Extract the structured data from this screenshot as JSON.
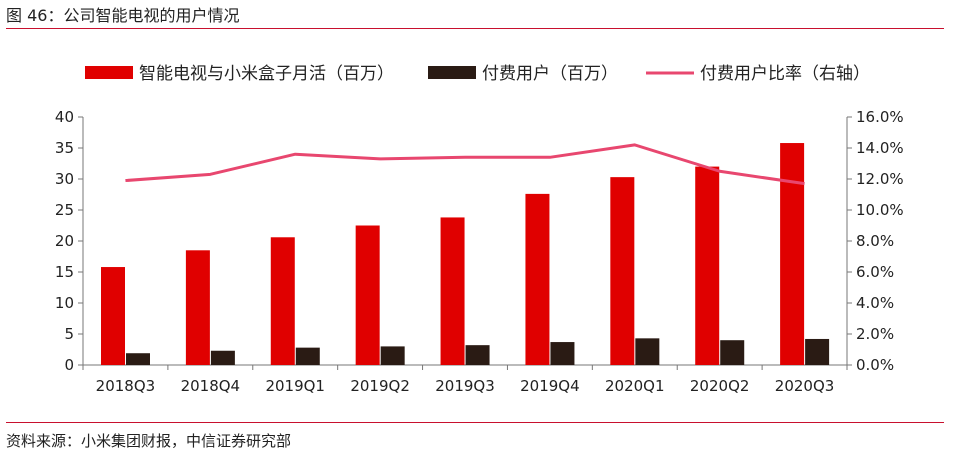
{
  "header": {
    "title": "图 46：公司智能电视的用户情况"
  },
  "footer": {
    "source": "资料来源：小米集团财报，中信证券研究部"
  },
  "colors": {
    "bar_mau": "#e00000",
    "bar_paid": "#2a1b14",
    "line_ratio": "#e8476f",
    "rule": "#c8102e"
  },
  "chart_data": {
    "type": "bar",
    "categories": [
      "2018Q3",
      "2018Q4",
      "2019Q1",
      "2019Q2",
      "2019Q3",
      "2019Q4",
      "2020Q1",
      "2020Q2",
      "2020Q3"
    ],
    "series": [
      {
        "name": "智能电视与小米盒子月活（百万）",
        "type": "bar",
        "axis": "left",
        "values": [
          15.8,
          18.5,
          20.6,
          22.5,
          23.8,
          27.6,
          30.3,
          32.0,
          35.8
        ]
      },
      {
        "name": "付费用户（百万）",
        "type": "bar",
        "axis": "left",
        "values": [
          1.9,
          2.3,
          2.8,
          3.0,
          3.2,
          3.7,
          4.3,
          4.0,
          4.2
        ]
      },
      {
        "name": "付费用户比率（右轴）",
        "type": "line",
        "axis": "right",
        "values": [
          11.9,
          12.3,
          13.6,
          13.3,
          13.4,
          13.4,
          14.2,
          12.5,
          11.7
        ]
      }
    ],
    "yleft": {
      "lim": [
        0,
        40
      ],
      "ticks": [
        "0",
        "5",
        "10",
        "15",
        "20",
        "25",
        "30",
        "35",
        "40"
      ]
    },
    "yright": {
      "lim": [
        0,
        16
      ],
      "ticks": [
        "0.0%",
        "2.0%",
        "4.0%",
        "6.0%",
        "8.0%",
        "10.0%",
        "12.0%",
        "14.0%",
        "16.0%"
      ]
    },
    "legend": "top",
    "grid": false
  }
}
